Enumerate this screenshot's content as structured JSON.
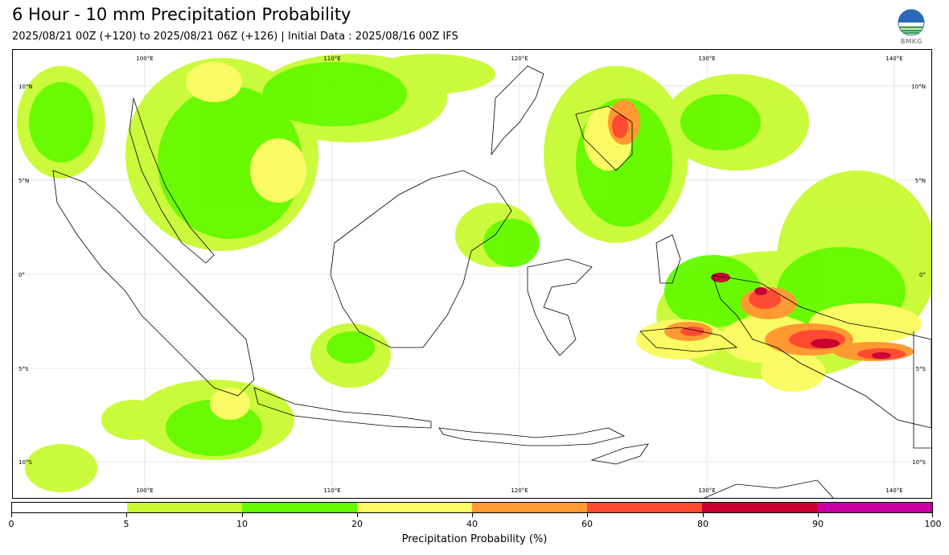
{
  "title": "6 Hour - 10 mm Precipitation Probability",
  "subtitle": "2025/08/21 00Z (+120) to 2025/08/21 06Z (+126) | Initial Data : 2025/08/16 00Z IFS",
  "logo": {
    "icon": "bmkg-logo-icon",
    "text": "BMKG"
  },
  "map": {
    "lon_labels_top": [
      "100°E",
      "110°E",
      "120°E",
      "130°E",
      "140°E"
    ],
    "lon_labels_bottom": [
      "100°E",
      "110°E",
      "120°E",
      "130°E",
      "140°E"
    ],
    "lat_labels_left": [
      "10°N",
      "5°N",
      "0°",
      "5°S",
      "10°S"
    ],
    "lat_labels_right": [
      "10°N",
      "5°N",
      "0°",
      "5°S",
      "10°S"
    ]
  },
  "colorbar": {
    "colors": [
      "#ffffff",
      "#c8fa32",
      "#64fa00",
      "#fafa64",
      "#ff9932",
      "#ff4b32",
      "#c80032",
      "#c800a0"
    ],
    "tick_labels": [
      "0",
      "5",
      "10",
      "20",
      "40",
      "60",
      "80",
      "90",
      "100"
    ],
    "label": "Precipitation Probability (%)"
  }
}
